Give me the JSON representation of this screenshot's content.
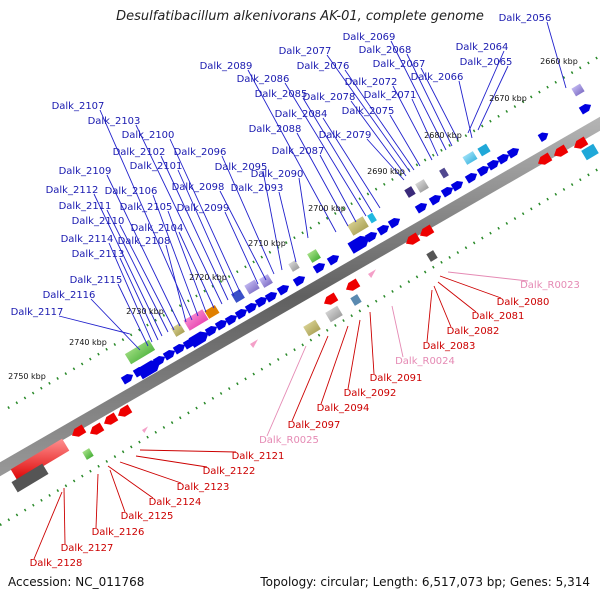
{
  "title": "Desulfatibacillum alkenivorans AK-01, complete genome",
  "accession_label": "Accession: NC_011768",
  "summary_label": "Topology: circular; Length: 6,517,073 bp; Genes: 5,314",
  "colors": {
    "forward_gene": "#0000e0",
    "reverse_gene": "#ee0000",
    "rna_gene": "#f4a0c8",
    "tick": "#2a8a2a",
    "backbone": "#777777",
    "label_forward": "#1a1ab0",
    "label_reverse": "#cc0000",
    "label_rna": "#e58ab4"
  },
  "scale_labels": [
    "2660 kbp",
    "2670 kbp",
    "2680 kbp",
    "2690 kbp",
    "2700 kbp",
    "2710 kbp",
    "2720 kbp",
    "2730 kbp",
    "2740 kbp",
    "2750 kbp"
  ],
  "forward_genes": [
    "Dalk_2056",
    "Dalk_2064",
    "Dalk_2065",
    "Dalk_2066",
    "Dalk_2067",
    "Dalk_2068",
    "Dalk_2069",
    "Dalk_2071",
    "Dalk_2072",
    "Dalk_2075",
    "Dalk_2076",
    "Dalk_2077",
    "Dalk_2078",
    "Dalk_2079",
    "Dalk_2084",
    "Dalk_2085",
    "Dalk_2086",
    "Dalk_2087",
    "Dalk_2088",
    "Dalk_2089",
    "Dalk_2090",
    "Dalk_2093",
    "Dalk_2095",
    "Dalk_2096",
    "Dalk_2098",
    "Dalk_2099",
    "Dalk_2100",
    "Dalk_2101",
    "Dalk_2102",
    "Dalk_2103",
    "Dalk_2104",
    "Dalk_2105",
    "Dalk_2106",
    "Dalk_2107",
    "Dalk_2108",
    "Dalk_2109",
    "Dalk_2110",
    "Dalk_2111",
    "Dalk_2112",
    "Dalk_2113",
    "Dalk_2114",
    "Dalk_2115",
    "Dalk_2116",
    "Dalk_2117"
  ],
  "reverse_genes": [
    "Dalk_R0023",
    "Dalk_2080",
    "Dalk_2081",
    "Dalk_2082",
    "Dalk_2083",
    "Dalk_R0024",
    "Dalk_2091",
    "Dalk_2092",
    "Dalk_2094",
    "Dalk_2097",
    "Dalk_R0025",
    "Dalk_2121",
    "Dalk_2122",
    "Dalk_2123",
    "Dalk_2124",
    "Dalk_2125",
    "Dalk_2126",
    "Dalk_2127",
    "Dalk_2128"
  ]
}
